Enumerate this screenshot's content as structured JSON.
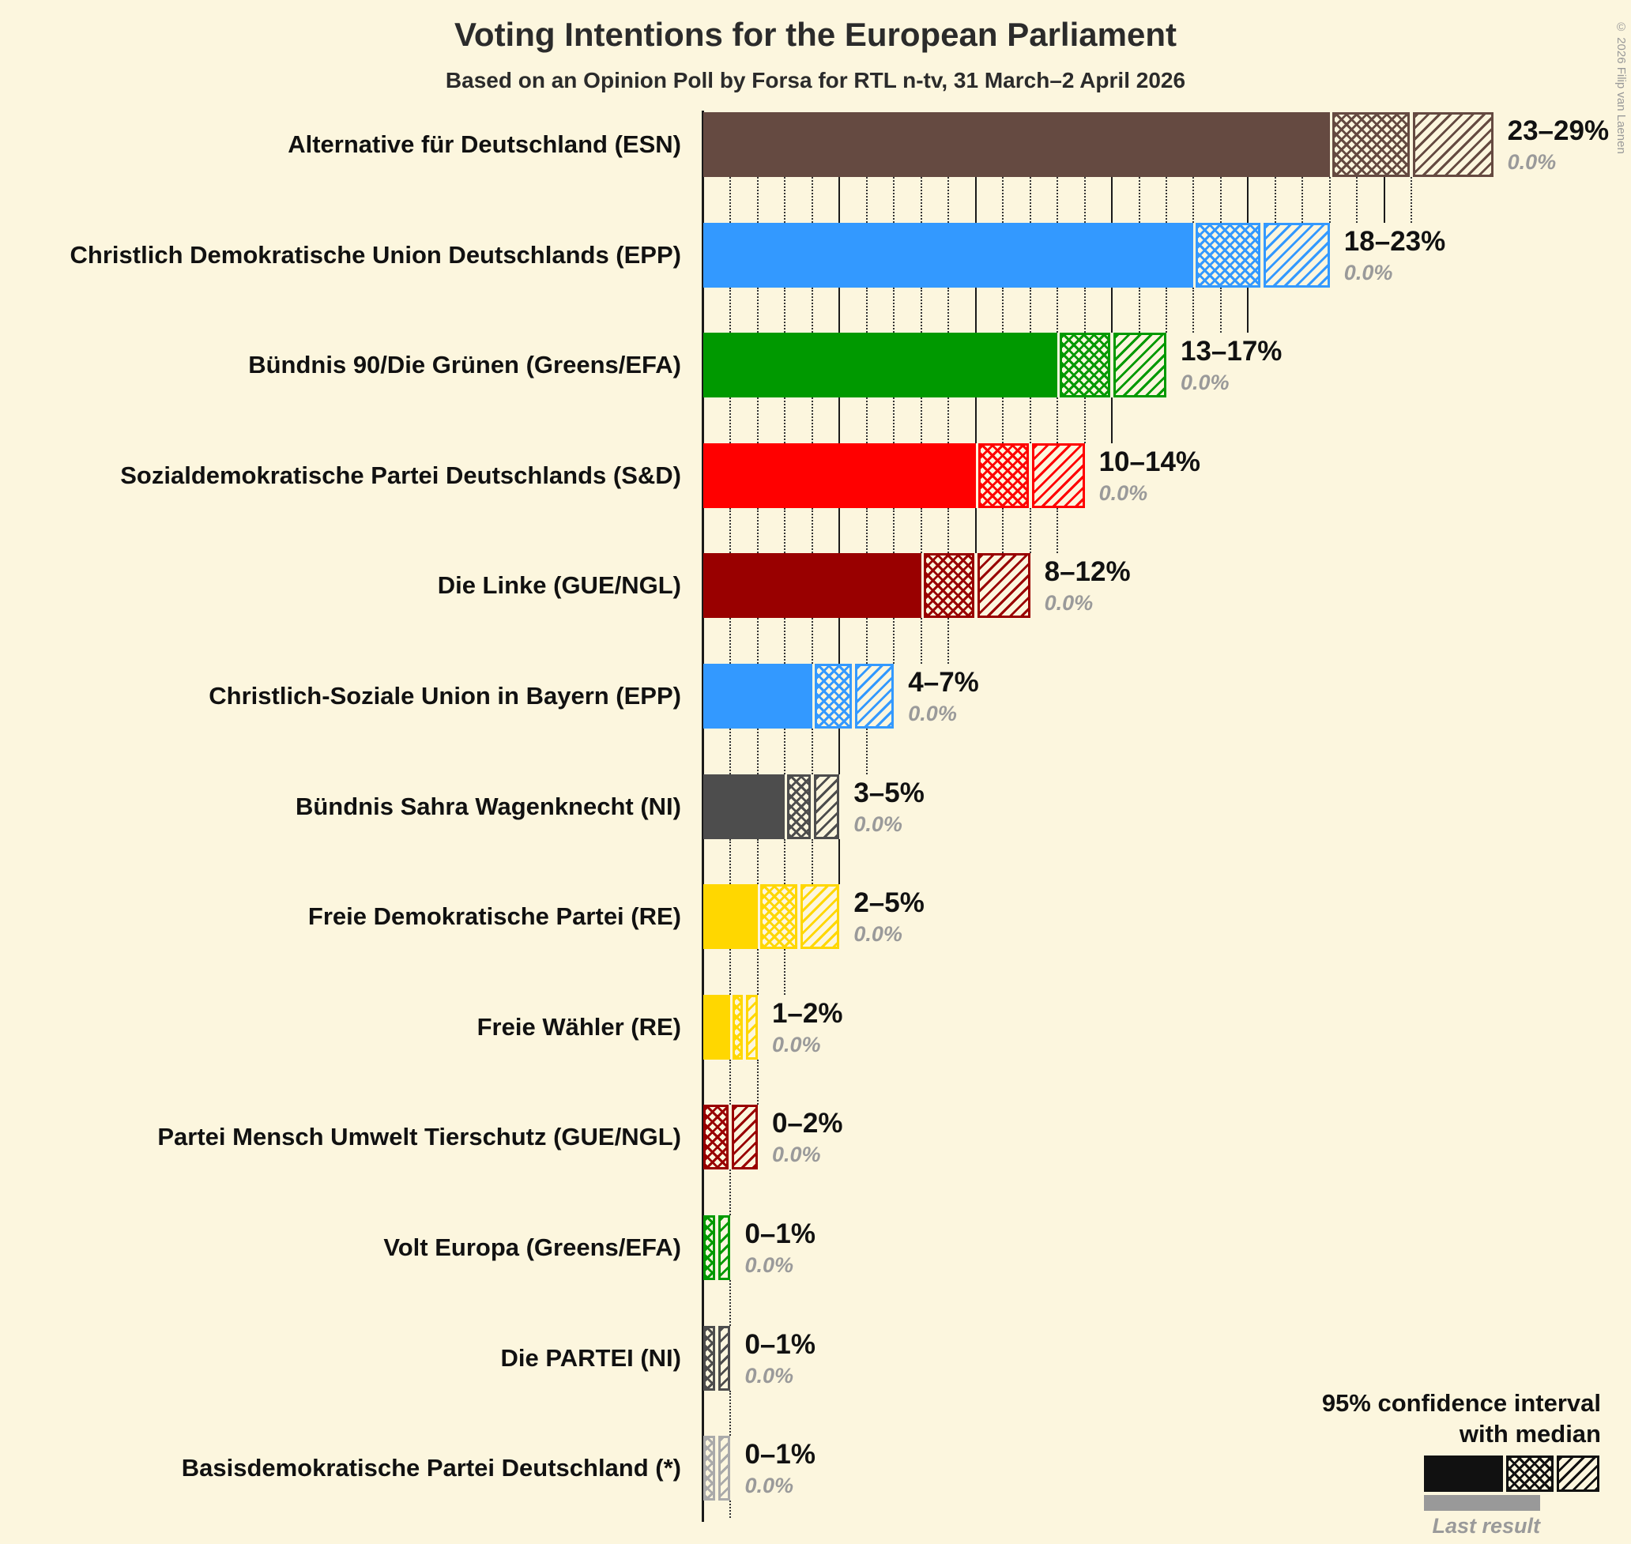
{
  "copyright": "© 2026 Filip van Laenen",
  "legend": {
    "line1": "95% confidence interval",
    "line2": "with median",
    "last_result": "Last result"
  },
  "chart_data": {
    "type": "bar",
    "orientation": "horizontal",
    "unit": "%",
    "title": "Voting Intentions for the European Parliament",
    "subtitle": "Based on an Opinion Poll by Forsa for RTL n-tv, 31 March–2 April 2026",
    "xlim": [
      0,
      30
    ],
    "gridlines": {
      "minor_every_pct": 1,
      "major_every_pct": 5
    },
    "legend_position": "bottom-right",
    "rows": [
      {
        "label": "Alternative für Deutschland (ESN)",
        "color": "#654A41",
        "ci_low": 23,
        "median": 26,
        "ci_high": 29,
        "range_label": "23–29%",
        "last_result": 0.0,
        "last_result_label": "0.0%"
      },
      {
        "label": "Christlich Demokratische Union Deutschlands (EPP)",
        "color": "#3399FF",
        "ci_low": 18,
        "median": 20.5,
        "ci_high": 23,
        "range_label": "18–23%",
        "last_result": 0.0,
        "last_result_label": "0.0%"
      },
      {
        "label": "Bündnis 90/Die Grünen (Greens/EFA)",
        "color": "#009900",
        "ci_low": 13,
        "median": 15,
        "ci_high": 17,
        "range_label": "13–17%",
        "last_result": 0.0,
        "last_result_label": "0.0%"
      },
      {
        "label": "Sozialdemokratische Partei Deutschlands (S&D)",
        "color": "#FF0000",
        "ci_low": 10,
        "median": 12,
        "ci_high": 14,
        "range_label": "10–14%",
        "last_result": 0.0,
        "last_result_label": "0.0%"
      },
      {
        "label": "Die Linke (GUE/NGL)",
        "color": "#990000",
        "ci_low": 8,
        "median": 10,
        "ci_high": 12,
        "range_label": "8–12%",
        "last_result": 0.0,
        "last_result_label": "0.0%"
      },
      {
        "label": "Christlich-Soziale Union in Bayern (EPP)",
        "color": "#3399FF",
        "ci_low": 4,
        "median": 5.5,
        "ci_high": 7,
        "range_label": "4–7%",
        "last_result": 0.0,
        "last_result_label": "0.0%"
      },
      {
        "label": "Bündnis Sahra Wagenknecht (NI)",
        "color": "#4D4D4D",
        "ci_low": 3,
        "median": 4,
        "ci_high": 5,
        "range_label": "3–5%",
        "last_result": 0.0,
        "last_result_label": "0.0%"
      },
      {
        "label": "Freie Demokratische Partei (RE)",
        "color": "#FFD700",
        "ci_low": 2,
        "median": 3.5,
        "ci_high": 5,
        "range_label": "2–5%",
        "last_result": 0.0,
        "last_result_label": "0.0%"
      },
      {
        "label": "Freie Wähler (RE)",
        "color": "#FFD700",
        "ci_low": 1,
        "median": 1.5,
        "ci_high": 2,
        "range_label": "1–2%",
        "last_result": 0.0,
        "last_result_label": "0.0%"
      },
      {
        "label": "Partei Mensch Umwelt Tierschutz (GUE/NGL)",
        "color": "#990000",
        "ci_low": 0,
        "median": 1,
        "ci_high": 2,
        "range_label": "0–2%",
        "last_result": 0.0,
        "last_result_label": "0.0%"
      },
      {
        "label": "Volt Europa (Greens/EFA)",
        "color": "#009900",
        "ci_low": 0,
        "median": 0.5,
        "ci_high": 1,
        "range_label": "0–1%",
        "last_result": 0.0,
        "last_result_label": "0.0%"
      },
      {
        "label": "Die PARTEI (NI)",
        "color": "#4D4D4D",
        "ci_low": 0,
        "median": 0.5,
        "ci_high": 1,
        "range_label": "0–1%",
        "last_result": 0.0,
        "last_result_label": "0.0%"
      },
      {
        "label": "Basisdemokratische Partei Deutschland (*)",
        "color": "#AAAAAA",
        "ci_low": 0,
        "median": 0.5,
        "ci_high": 1,
        "range_label": "0–1%",
        "last_result": 0.0,
        "last_result_label": "0.0%"
      }
    ]
  }
}
